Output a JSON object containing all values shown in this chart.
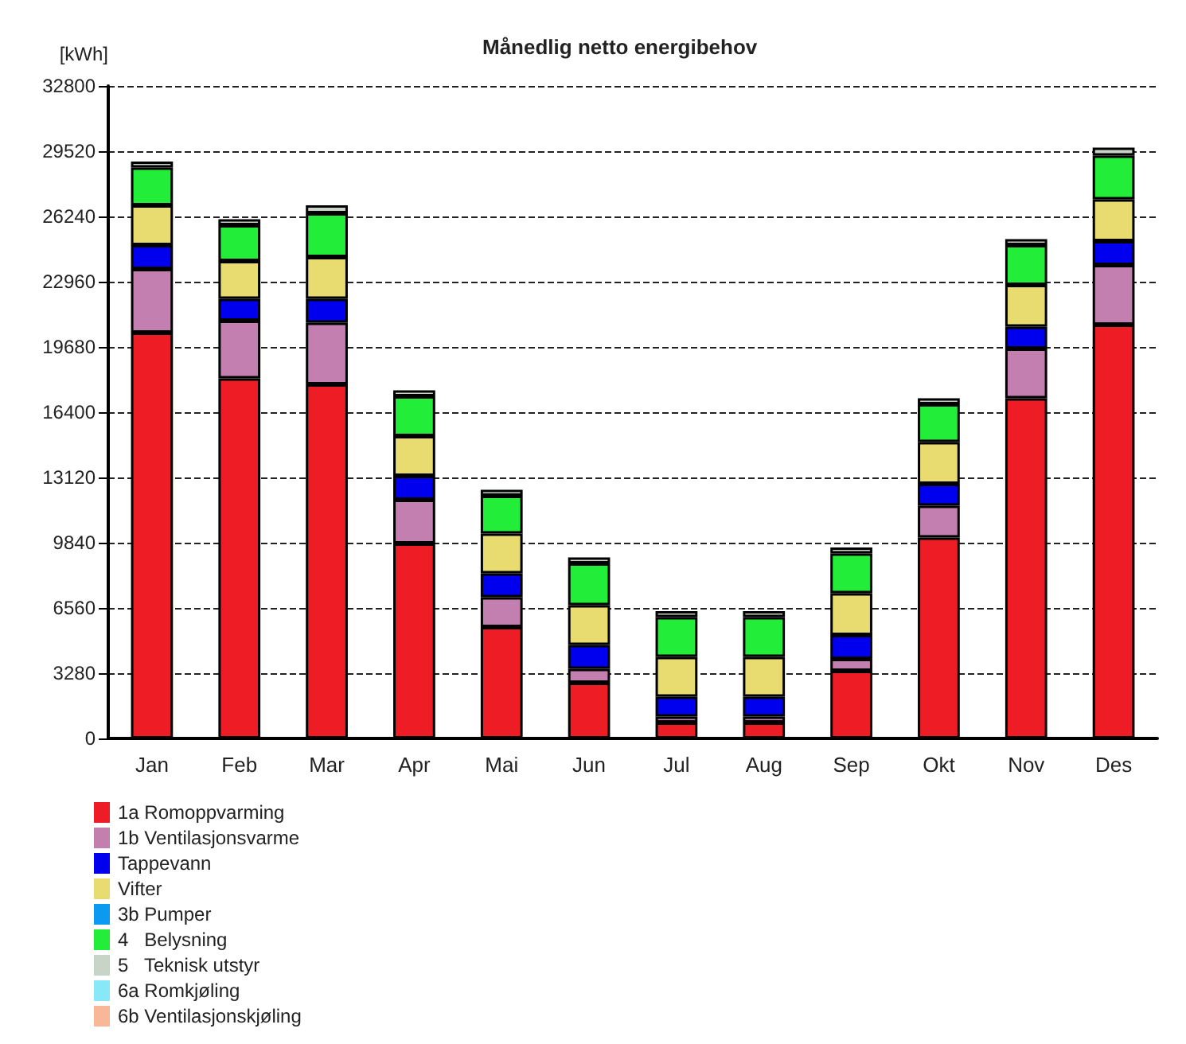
{
  "chart_data": {
    "type": "bar",
    "title": "Månedlig netto energibehov",
    "ylabel": "[kWh]",
    "stacked": true,
    "categories": [
      "Jan",
      "Feb",
      "Mar",
      "Apr",
      "Mai",
      "Jun",
      "Jul",
      "Aug",
      "Sep",
      "Okt",
      "Nov",
      "Des"
    ],
    "series": [
      {
        "name": "1a Romoppvarming",
        "color": "#ee1c25",
        "values": [
          20400,
          18100,
          17800,
          9800,
          5600,
          2800,
          800,
          800,
          3400,
          10100,
          17100,
          20800
        ]
      },
      {
        "name": "1b Ventilasjonsvarme",
        "color": "#c27fb0",
        "values": [
          3200,
          2900,
          3100,
          2200,
          1500,
          700,
          300,
          300,
          600,
          1600,
          2500,
          3000
        ]
      },
      {
        "name": "Tappevann",
        "color": "#0000ee",
        "values": [
          1200,
          1100,
          1200,
          1200,
          1200,
          1200,
          1000,
          1000,
          1200,
          1100,
          1100,
          1200
        ]
      },
      {
        "name": "Vifter",
        "color": "#e8dc70",
        "values": [
          2000,
          1900,
          2100,
          2000,
          2000,
          2000,
          2000,
          2000,
          2100,
          2100,
          2100,
          2100
        ]
      },
      {
        "name": "3b Pumper",
        "color": "#0a9af0",
        "values": [
          0,
          0,
          0,
          0,
          0,
          0,
          0,
          0,
          0,
          0,
          0,
          0
        ]
      },
      {
        "name": "4   Belysning",
        "color": "#22ee3a",
        "values": [
          1900,
          1800,
          2200,
          2000,
          1900,
          2100,
          2000,
          2000,
          2000,
          1900,
          2000,
          2200
        ]
      },
      {
        "name": "5   Teknisk utstyr",
        "color": "#c8d4c8",
        "values": [
          300,
          300,
          400,
          300,
          300,
          300,
          300,
          300,
          300,
          300,
          300,
          400
        ]
      },
      {
        "name": "6a Romkjøling",
        "color": "#88e8f8",
        "values": [
          0,
          0,
          0,
          0,
          0,
          0,
          0,
          0,
          0,
          0,
          0,
          0
        ]
      },
      {
        "name": "6b Ventilasjonskjøling",
        "color": "#f8b898",
        "values": [
          0,
          0,
          0,
          0,
          0,
          0,
          0,
          0,
          0,
          0,
          0,
          0
        ]
      }
    ],
    "ylim": [
      0,
      32800
    ],
    "yticks": [
      0,
      3280,
      6560,
      9840,
      13120,
      16400,
      19680,
      22960,
      26240,
      29520,
      32800
    ],
    "grid": "y",
    "legend": "bottom left"
  }
}
